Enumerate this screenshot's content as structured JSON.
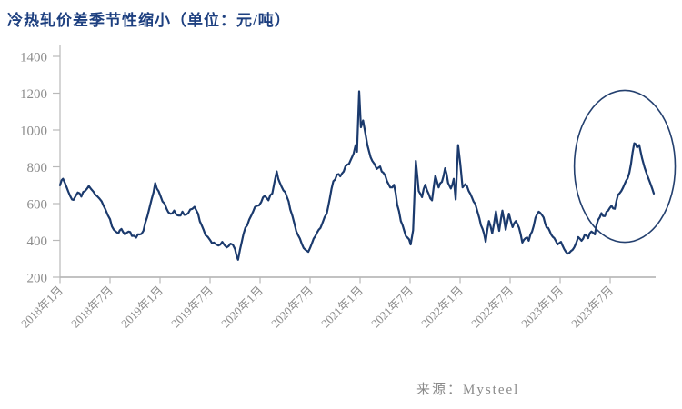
{
  "page": {
    "background": "#ffffff"
  },
  "header": {
    "title": "冷热轧价差季节性缩小（单位：元/吨）",
    "color": "#1e4080"
  },
  "footer": {
    "source": "来源：Mysteel",
    "color": "#8a8a8a"
  },
  "axis_style": {
    "axis_line_color": "#b9b9b9",
    "tick_label_color": "#8c8c8c"
  },
  "chart_data": {
    "type": "line",
    "title": "冷热轧价差季节性缩小",
    "unit": "元/吨",
    "ylim": [
      200,
      1400
    ],
    "y_ticks": [
      200,
      400,
      600,
      800,
      1000,
      1200,
      1400
    ],
    "x_ticks": [
      "2018年1月",
      "2018年7月",
      "2019年1月",
      "2019年7月",
      "2020年1月",
      "2020年7月",
      "2021年1月",
      "2021年7月",
      "2022年1月",
      "2022年7月",
      "2023年1月",
      "2023年7月"
    ],
    "x_tick_month_offsets": [
      0,
      6,
      12,
      18,
      24,
      30,
      36,
      42,
      48,
      54,
      60,
      66
    ],
    "grid": false,
    "legend": "none",
    "series": [
      {
        "name": "冷热轧价差",
        "color": "#1b3a6d",
        "points": [
          [
            "2018-01-01",
            700
          ],
          [
            "2018-01-12",
            735
          ],
          [
            "2018-01-25",
            690
          ],
          [
            "2018-02-08",
            640
          ],
          [
            "2018-02-20",
            620
          ],
          [
            "2018-03-05",
            660
          ],
          [
            "2018-03-18",
            638
          ],
          [
            "2018-04-01",
            668
          ],
          [
            "2018-04-15",
            696
          ],
          [
            "2018-05-01",
            665
          ],
          [
            "2018-05-15",
            640
          ],
          [
            "2018-06-01",
            612
          ],
          [
            "2018-06-15",
            568
          ],
          [
            "2018-07-01",
            515
          ],
          [
            "2018-07-15",
            458
          ],
          [
            "2018-08-01",
            438
          ],
          [
            "2018-08-12",
            462
          ],
          [
            "2018-08-25",
            432
          ],
          [
            "2018-09-08",
            448
          ],
          [
            "2018-09-20",
            424
          ],
          [
            "2018-10-05",
            415
          ],
          [
            "2018-10-18",
            432
          ],
          [
            "2018-11-01",
            452
          ],
          [
            "2018-11-15",
            528
          ],
          [
            "2018-12-01",
            625
          ],
          [
            "2018-12-14",
            712
          ],
          [
            "2018-12-26",
            668
          ],
          [
            "2019-01-10",
            612
          ],
          [
            "2019-01-25",
            572
          ],
          [
            "2019-02-08",
            545
          ],
          [
            "2019-02-22",
            562
          ],
          [
            "2019-03-08",
            535
          ],
          [
            "2019-03-22",
            556
          ],
          [
            "2019-04-05",
            540
          ],
          [
            "2019-04-20",
            568
          ],
          [
            "2019-05-05",
            582
          ],
          [
            "2019-05-18",
            545
          ],
          [
            "2019-06-01",
            482
          ],
          [
            "2019-06-15",
            428
          ],
          [
            "2019-07-01",
            402
          ],
          [
            "2019-07-15",
            388
          ],
          [
            "2019-08-01",
            372
          ],
          [
            "2019-08-15",
            392
          ],
          [
            "2019-09-01",
            362
          ],
          [
            "2019-09-15",
            382
          ],
          [
            "2019-10-01",
            352
          ],
          [
            "2019-10-12",
            295
          ],
          [
            "2019-10-25",
            388
          ],
          [
            "2019-11-08",
            468
          ],
          [
            "2019-11-22",
            512
          ],
          [
            "2019-12-06",
            556
          ],
          [
            "2019-12-20",
            588
          ],
          [
            "2020-01-05",
            608
          ],
          [
            "2020-01-18",
            642
          ],
          [
            "2020-02-01",
            618
          ],
          [
            "2020-02-15",
            655
          ],
          [
            "2020-03-01",
            775
          ],
          [
            "2020-03-12",
            715
          ],
          [
            "2020-03-25",
            672
          ],
          [
            "2020-04-08",
            635
          ],
          [
            "2020-04-20",
            568
          ],
          [
            "2020-05-05",
            488
          ],
          [
            "2020-05-18",
            428
          ],
          [
            "2020-06-01",
            382
          ],
          [
            "2020-06-15",
            348
          ],
          [
            "2020-06-25",
            338
          ],
          [
            "2020-07-08",
            385
          ],
          [
            "2020-07-20",
            422
          ],
          [
            "2020-08-02",
            458
          ],
          [
            "2020-08-15",
            492
          ],
          [
            "2020-09-01",
            545
          ],
          [
            "2020-09-12",
            628
          ],
          [
            "2020-09-25",
            722
          ],
          [
            "2020-10-08",
            758
          ],
          [
            "2020-10-20",
            748
          ],
          [
            "2020-11-02",
            775
          ],
          [
            "2020-11-15",
            812
          ],
          [
            "2020-11-28",
            838
          ],
          [
            "2020-12-08",
            872
          ],
          [
            "2020-12-15",
            918
          ],
          [
            "2020-12-20",
            882
          ],
          [
            "2020-12-28",
            1210
          ],
          [
            "2021-01-04",
            1015
          ],
          [
            "2021-01-12",
            1052
          ],
          [
            "2021-01-22",
            968
          ],
          [
            "2021-02-03",
            885
          ],
          [
            "2021-02-15",
            832
          ],
          [
            "2021-03-01",
            788
          ],
          [
            "2021-03-13",
            802
          ],
          [
            "2021-03-25",
            768
          ],
          [
            "2021-04-08",
            722
          ],
          [
            "2021-04-20",
            688
          ],
          [
            "2021-05-03",
            702
          ],
          [
            "2021-05-15",
            592
          ],
          [
            "2021-05-28",
            505
          ],
          [
            "2021-06-10",
            452
          ],
          [
            "2021-06-22",
            415
          ],
          [
            "2021-07-03",
            378
          ],
          [
            "2021-07-12",
            455
          ],
          [
            "2021-07-22",
            832
          ],
          [
            "2021-08-02",
            668
          ],
          [
            "2021-08-14",
            635
          ],
          [
            "2021-08-26",
            702
          ],
          [
            "2021-09-08",
            652
          ],
          [
            "2021-09-20",
            618
          ],
          [
            "2021-10-02",
            752
          ],
          [
            "2021-10-14",
            688
          ],
          [
            "2021-10-26",
            718
          ],
          [
            "2021-11-07",
            792
          ],
          [
            "2021-11-18",
            712
          ],
          [
            "2021-11-28",
            682
          ],
          [
            "2021-12-08",
            735
          ],
          [
            "2021-12-15",
            622
          ],
          [
            "2021-12-24",
            918
          ],
          [
            "2022-01-02",
            812
          ],
          [
            "2022-01-10",
            688
          ],
          [
            "2022-01-20",
            705
          ],
          [
            "2022-02-02",
            668
          ],
          [
            "2022-02-14",
            632
          ],
          [
            "2022-02-26",
            598
          ],
          [
            "2022-03-10",
            522
          ],
          [
            "2022-03-22",
            462
          ],
          [
            "2022-04-03",
            392
          ],
          [
            "2022-04-15",
            505
          ],
          [
            "2022-04-27",
            438
          ],
          [
            "2022-05-10",
            558
          ],
          [
            "2022-05-22",
            452
          ],
          [
            "2022-06-03",
            562
          ],
          [
            "2022-06-15",
            458
          ],
          [
            "2022-06-27",
            545
          ],
          [
            "2022-07-10",
            472
          ],
          [
            "2022-07-22",
            505
          ],
          [
            "2022-08-03",
            468
          ],
          [
            "2022-08-15",
            388
          ],
          [
            "2022-08-27",
            412
          ],
          [
            "2022-09-08",
            398
          ],
          [
            "2022-09-20",
            448
          ],
          [
            "2022-10-02",
            522
          ],
          [
            "2022-10-14",
            556
          ],
          [
            "2022-10-26",
            538
          ],
          [
            "2022-11-07",
            492
          ],
          [
            "2022-11-18",
            468
          ],
          [
            "2022-11-29",
            432
          ],
          [
            "2022-12-10",
            412
          ],
          [
            "2022-12-22",
            378
          ],
          [
            "2023-01-04",
            392
          ],
          [
            "2023-01-16",
            352
          ],
          [
            "2023-01-28",
            328
          ],
          [
            "2023-02-10",
            342
          ],
          [
            "2023-02-22",
            362
          ],
          [
            "2023-03-06",
            418
          ],
          [
            "2023-03-18",
            398
          ],
          [
            "2023-03-30",
            432
          ],
          [
            "2023-04-12",
            412
          ],
          [
            "2023-04-24",
            448
          ],
          [
            "2023-05-06",
            432
          ],
          [
            "2023-05-18",
            512
          ],
          [
            "2023-05-30",
            548
          ],
          [
            "2023-06-12",
            532
          ],
          [
            "2023-06-24",
            562
          ],
          [
            "2023-07-06",
            588
          ],
          [
            "2023-07-18",
            572
          ],
          [
            "2023-07-30",
            648
          ],
          [
            "2023-08-11",
            668
          ],
          [
            "2023-08-23",
            705
          ],
          [
            "2023-09-04",
            738
          ],
          [
            "2023-09-16",
            815
          ],
          [
            "2023-09-28",
            928
          ],
          [
            "2023-10-08",
            905
          ],
          [
            "2023-10-16",
            918
          ],
          [
            "2023-10-26",
            848
          ],
          [
            "2023-11-05",
            795
          ],
          [
            "2023-11-15",
            752
          ],
          [
            "2023-11-24",
            718
          ],
          [
            "2023-12-02",
            682
          ],
          [
            "2023-12-08",
            655
          ]
        ]
      }
    ],
    "annotations": [
      {
        "shape": "ellipse",
        "purpose": "highlight-recent-spread-move",
        "x_months_range": [
          61.7,
          73.8
        ],
        "value_range": [
          390,
          1215
        ],
        "color": "#24406f"
      }
    ]
  }
}
